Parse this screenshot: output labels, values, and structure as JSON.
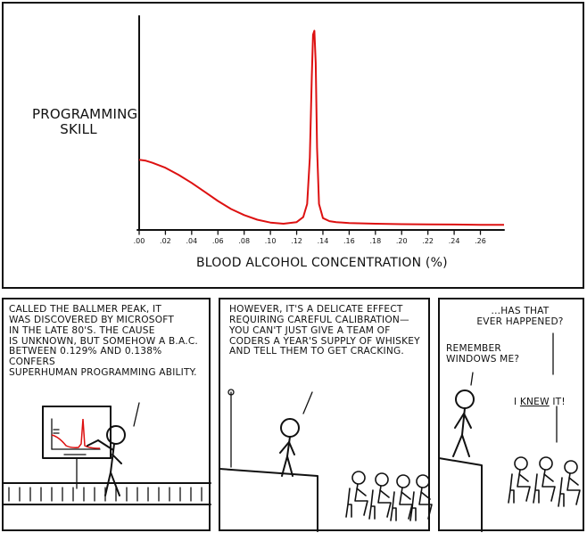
{
  "chart_data": {
    "type": "line",
    "title": "",
    "ylabel": "PROGRAMMING\nSKILL",
    "xlabel": "BLOOD ALCOHOL CONCENTRATION (%)",
    "x_ticks": [
      ".00",
      ".02",
      ".04",
      ".06",
      ".08",
      ".10",
      ".12",
      ".14",
      ".16",
      ".18",
      ".20",
      ".22",
      ".24",
      ".26"
    ],
    "xlim": [
      0,
      0.278
    ],
    "ylim": [
      0,
      1
    ],
    "grid": false,
    "color": "#dd1111",
    "series": [
      {
        "x": [
          0.0,
          0.005,
          0.01,
          0.02,
          0.03,
          0.04,
          0.05,
          0.06,
          0.07,
          0.08,
          0.09,
          0.1,
          0.11,
          0.12,
          0.125,
          0.128,
          0.13,
          0.1315,
          0.1325,
          0.1335,
          0.1345,
          0.1355,
          0.137,
          0.14,
          0.145,
          0.15,
          0.16,
          0.18,
          0.2,
          0.22,
          0.24,
          0.26,
          0.278
        ],
        "y": [
          0.34,
          0.335,
          0.325,
          0.3,
          0.265,
          0.225,
          0.18,
          0.135,
          0.095,
          0.065,
          0.042,
          0.028,
          0.022,
          0.03,
          0.055,
          0.12,
          0.35,
          0.75,
          0.96,
          0.98,
          0.82,
          0.4,
          0.12,
          0.05,
          0.035,
          0.03,
          0.025,
          0.022,
          0.02,
          0.019,
          0.018,
          0.017,
          0.017
        ]
      }
    ]
  },
  "panels": {
    "p2_text": "CALLED THE BALLMER PEAK, IT\nWAS DISCOVERED BY MICROSOFT\nIN THE LATE 80'S. THE CAUSE\nIS UNKNOWN, BUT SOMEHOW A B.A.C.\nBETWEEN 0.129% AND 0.138% CONFERS\nSUPERHUMAN PROGRAMMING ABILITY.",
    "p3_text": "HOWEVER, IT'S A DELICATE EFFECT\nREQUIRING CAREFUL CALIBRATION—\nYOU CAN'T JUST GIVE A TEAM OF\nCODERS A YEAR'S SUPPLY OF WHISKEY\nAND TELL THEM TO GET CRACKING.",
    "p4_text_1": "...HAS THAT\nEVER HAPPENED?",
    "p4_text_2": "REMEMBER\nWINDOWS ME?",
    "p4_text_3_pre": "I ",
    "p4_text_3_under": "KNEW",
    "p4_text_3_post": " IT!"
  }
}
